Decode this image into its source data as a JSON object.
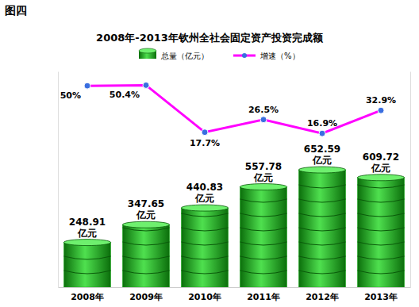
{
  "chart_data": {
    "type": "bar",
    "title": "2008年-2013年钦州全社会固定资产投资完成额",
    "annotations": [
      "图四"
    ],
    "categories": [
      "2008年",
      "2009年",
      "2010年",
      "2011年",
      "2012年",
      "2013年"
    ],
    "series": [
      {
        "name": "总量（亿元）",
        "type": "bar",
        "color": "#1fb51f",
        "values": [
          248.91,
          347.65,
          440.83,
          557.78,
          652.59,
          609.72
        ],
        "value_labels": [
          "248.91亿元",
          "347.65亿元",
          "440.83亿元",
          "557.78亿元",
          "652.59亿元",
          "609.72亿元"
        ]
      },
      {
        "name": "增速（%）",
        "type": "line",
        "axis": "y2",
        "color": "#ff00ff",
        "marker": "circle",
        "values": [
          50,
          50.4,
          17.7,
          26.5,
          16.9,
          32.9
        ],
        "value_labels": [
          "50%",
          "50.4%",
          "17.7%",
          "26.5%",
          "16.9%",
          "32.9%"
        ]
      }
    ],
    "ylim": [
      0,
      1200
    ],
    "y2lim": [
      -90,
      60
    ],
    "data_labels": true,
    "tick_labels": "x",
    "legend": "top",
    "grid": false
  }
}
